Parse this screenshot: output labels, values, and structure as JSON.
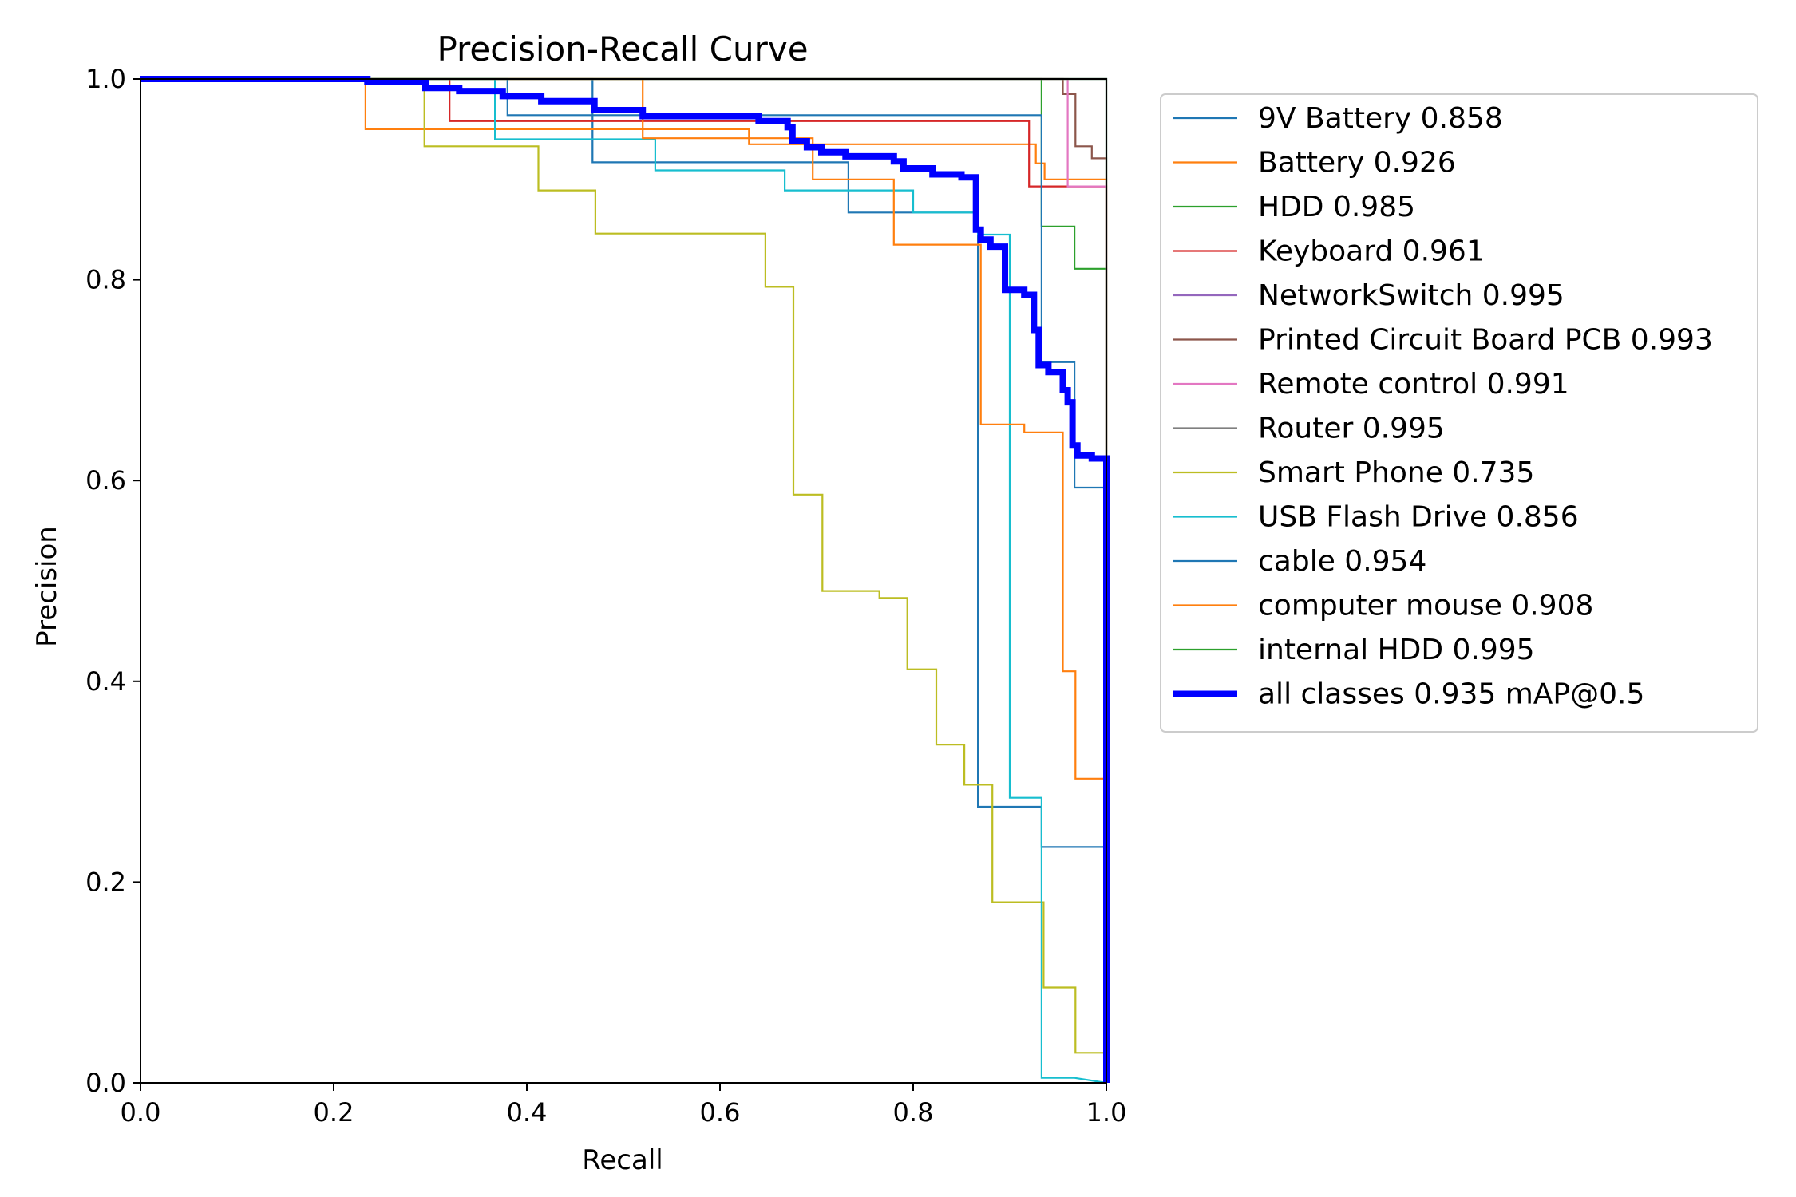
{
  "chart_data": {
    "type": "line",
    "title": "Precision-Recall Curve",
    "xlabel": "Recall",
    "ylabel": "Precision",
    "xlim": [
      0,
      1
    ],
    "ylim": [
      0,
      1
    ],
    "xticks": [
      "0.0",
      "0.2",
      "0.4",
      "0.6",
      "0.8",
      "1.0"
    ],
    "yticks": [
      "0.0",
      "0.2",
      "0.4",
      "0.6",
      "0.8",
      "1.0"
    ],
    "grid": false,
    "legend_position": "outside-right",
    "series": [
      {
        "name": "9V Battery 0.858",
        "color": "#1f77b4",
        "points": [
          [
            0,
            1
          ],
          [
            0.468,
            1
          ],
          [
            0.468,
            0.917
          ],
          [
            0.733,
            0.917
          ],
          [
            0.733,
            0.867
          ],
          [
            0.867,
            0.867
          ],
          [
            0.867,
            0.275
          ],
          [
            0.933,
            0.275
          ],
          [
            0.933,
            0.235
          ],
          [
            1,
            0.235
          ],
          [
            1,
            0
          ]
        ]
      },
      {
        "name": "Battery 0.926",
        "color": "#ff7f0e",
        "points": [
          [
            0,
            1
          ],
          [
            0.233,
            1
          ],
          [
            0.233,
            0.95
          ],
          [
            0.63,
            0.95
          ],
          [
            0.63,
            0.935
          ],
          [
            0.927,
            0.935
          ],
          [
            0.927,
            0.916
          ],
          [
            0.936,
            0.916
          ],
          [
            0.936,
            0.9
          ],
          [
            1,
            0.9
          ],
          [
            1,
            0
          ]
        ]
      },
      {
        "name": "HDD 0.985",
        "color": "#2ca02c",
        "points": [
          [
            0,
            1
          ],
          [
            0.933,
            1
          ],
          [
            0.933,
            0.853
          ],
          [
            0.967,
            0.853
          ],
          [
            0.967,
            0.811
          ],
          [
            1,
            0.811
          ],
          [
            1,
            0
          ]
        ]
      },
      {
        "name": "Keyboard 0.961",
        "color": "#d62728",
        "points": [
          [
            0,
            1
          ],
          [
            0.32,
            1
          ],
          [
            0.32,
            0.958
          ],
          [
            0.92,
            0.958
          ],
          [
            0.92,
            0.893
          ],
          [
            1,
            0.893
          ],
          [
            1,
            0
          ]
        ]
      },
      {
        "name": "NetworkSwitch 0.995",
        "color": "#9467bd",
        "points": [
          [
            0,
            1
          ],
          [
            1,
            1
          ],
          [
            1,
            0
          ]
        ]
      },
      {
        "name": "Printed Circuit Board PCB 0.993",
        "color": "#8c564b",
        "points": [
          [
            0,
            1
          ],
          [
            0.955,
            1
          ],
          [
            0.955,
            0.985
          ],
          [
            0.968,
            0.985
          ],
          [
            0.968,
            0.933
          ],
          [
            0.985,
            0.933
          ],
          [
            0.985,
            0.921
          ],
          [
            1,
            0.921
          ],
          [
            1,
            0
          ]
        ]
      },
      {
        "name": "Remote control 0.991",
        "color": "#e377c2",
        "points": [
          [
            0,
            1
          ],
          [
            0.96,
            1
          ],
          [
            0.96,
            0.893
          ],
          [
            1,
            0.893
          ],
          [
            1,
            0
          ]
        ]
      },
      {
        "name": "Router 0.995",
        "color": "#7f7f7f",
        "points": [
          [
            0,
            1
          ],
          [
            1,
            1
          ],
          [
            1,
            0
          ]
        ]
      },
      {
        "name": "Smart Phone 0.735",
        "color": "#bcbd22",
        "points": [
          [
            0,
            1
          ],
          [
            0.294,
            1
          ],
          [
            0.294,
            0.933
          ],
          [
            0.412,
            0.933
          ],
          [
            0.412,
            0.889
          ],
          [
            0.471,
            0.889
          ],
          [
            0.471,
            0.846
          ],
          [
            0.647,
            0.846
          ],
          [
            0.647,
            0.793
          ],
          [
            0.676,
            0.793
          ],
          [
            0.676,
            0.586
          ],
          [
            0.706,
            0.586
          ],
          [
            0.706,
            0.49
          ],
          [
            0.765,
            0.49
          ],
          [
            0.765,
            0.483
          ],
          [
            0.794,
            0.483
          ],
          [
            0.794,
            0.412
          ],
          [
            0.824,
            0.412
          ],
          [
            0.824,
            0.337
          ],
          [
            0.853,
            0.337
          ],
          [
            0.853,
            0.297
          ],
          [
            0.882,
            0.297
          ],
          [
            0.882,
            0.18
          ],
          [
            0.935,
            0.18
          ],
          [
            0.935,
            0.095
          ],
          [
            0.968,
            0.095
          ],
          [
            0.968,
            0.03
          ],
          [
            1,
            0.03
          ],
          [
            1,
            0
          ]
        ]
      },
      {
        "name": "USB Flash Drive 0.856",
        "color": "#17becf",
        "points": [
          [
            0,
            1
          ],
          [
            0.367,
            1
          ],
          [
            0.367,
            0.94
          ],
          [
            0.533,
            0.94
          ],
          [
            0.533,
            0.909
          ],
          [
            0.667,
            0.909
          ],
          [
            0.667,
            0.889
          ],
          [
            0.8,
            0.889
          ],
          [
            0.8,
            0.867
          ],
          [
            0.867,
            0.867
          ],
          [
            0.867,
            0.845
          ],
          [
            0.9,
            0.845
          ],
          [
            0.9,
            0.284
          ],
          [
            0.933,
            0.284
          ],
          [
            0.933,
            0.005
          ],
          [
            0.967,
            0.005
          ],
          [
            1,
            0
          ],
          [
            1,
            0
          ]
        ]
      },
      {
        "name": "cable 0.954",
        "color": "#1f77b4",
        "points": [
          [
            0,
            1
          ],
          [
            0.38,
            1
          ],
          [
            0.38,
            0.964
          ],
          [
            0.933,
            0.964
          ],
          [
            0.933,
            0.718
          ],
          [
            0.967,
            0.718
          ],
          [
            0.967,
            0.593
          ],
          [
            1,
            0.593
          ],
          [
            1,
            0
          ]
        ]
      },
      {
        "name": "computer mouse 0.908",
        "color": "#ff7f0e",
        "points": [
          [
            0,
            1
          ],
          [
            0.52,
            1
          ],
          [
            0.52,
            0.941
          ],
          [
            0.696,
            0.941
          ],
          [
            0.696,
            0.9
          ],
          [
            0.78,
            0.9
          ],
          [
            0.78,
            0.835
          ],
          [
            0.87,
            0.835
          ],
          [
            0.87,
            0.656
          ],
          [
            0.915,
            0.656
          ],
          [
            0.915,
            0.648
          ],
          [
            0.955,
            0.648
          ],
          [
            0.955,
            0.41
          ],
          [
            0.968,
            0.41
          ],
          [
            0.968,
            0.303
          ],
          [
            1,
            0.303
          ],
          [
            1,
            0
          ]
        ]
      },
      {
        "name": "internal HDD 0.995",
        "color": "#2ca02c",
        "points": [
          [
            0,
            1
          ],
          [
            1,
            1
          ],
          [
            1,
            0
          ]
        ]
      },
      {
        "name": "all classes 0.935 mAP@0.5",
        "color": "#0000ff",
        "bold": true,
        "points": [
          [
            0,
            1
          ],
          [
            0.235,
            1
          ],
          [
            0.235,
            0.997
          ],
          [
            0.295,
            0.997
          ],
          [
            0.295,
            0.991
          ],
          [
            0.33,
            0.991
          ],
          [
            0.33,
            0.988
          ],
          [
            0.375,
            0.988
          ],
          [
            0.375,
            0.983
          ],
          [
            0.415,
            0.983
          ],
          [
            0.415,
            0.978
          ],
          [
            0.47,
            0.978
          ],
          [
            0.47,
            0.969
          ],
          [
            0.52,
            0.969
          ],
          [
            0.52,
            0.963
          ],
          [
            0.64,
            0.963
          ],
          [
            0.64,
            0.958
          ],
          [
            0.67,
            0.958
          ],
          [
            0.67,
            0.952
          ],
          [
            0.675,
            0.952
          ],
          [
            0.675,
            0.938
          ],
          [
            0.69,
            0.938
          ],
          [
            0.69,
            0.932
          ],
          [
            0.705,
            0.932
          ],
          [
            0.705,
            0.927
          ],
          [
            0.73,
            0.927
          ],
          [
            0.73,
            0.923
          ],
          [
            0.78,
            0.923
          ],
          [
            0.78,
            0.918
          ],
          [
            0.79,
            0.918
          ],
          [
            0.79,
            0.911
          ],
          [
            0.82,
            0.911
          ],
          [
            0.82,
            0.905
          ],
          [
            0.85,
            0.905
          ],
          [
            0.85,
            0.902
          ],
          [
            0.865,
            0.902
          ],
          [
            0.865,
            0.85
          ],
          [
            0.87,
            0.85
          ],
          [
            0.87,
            0.84
          ],
          [
            0.88,
            0.84
          ],
          [
            0.88,
            0.833
          ],
          [
            0.895,
            0.833
          ],
          [
            0.895,
            0.79
          ],
          [
            0.915,
            0.79
          ],
          [
            0.915,
            0.785
          ],
          [
            0.925,
            0.785
          ],
          [
            0.925,
            0.75
          ],
          [
            0.93,
            0.75
          ],
          [
            0.93,
            0.715
          ],
          [
            0.94,
            0.715
          ],
          [
            0.94,
            0.708
          ],
          [
            0.955,
            0.708
          ],
          [
            0.955,
            0.69
          ],
          [
            0.96,
            0.69
          ],
          [
            0.96,
            0.678
          ],
          [
            0.965,
            0.678
          ],
          [
            0.965,
            0.635
          ],
          [
            0.97,
            0.635
          ],
          [
            0.97,
            0.625
          ],
          [
            0.985,
            0.625
          ],
          [
            0.985,
            0.622
          ],
          [
            1,
            0.622
          ],
          [
            1,
            0
          ]
        ]
      }
    ]
  }
}
